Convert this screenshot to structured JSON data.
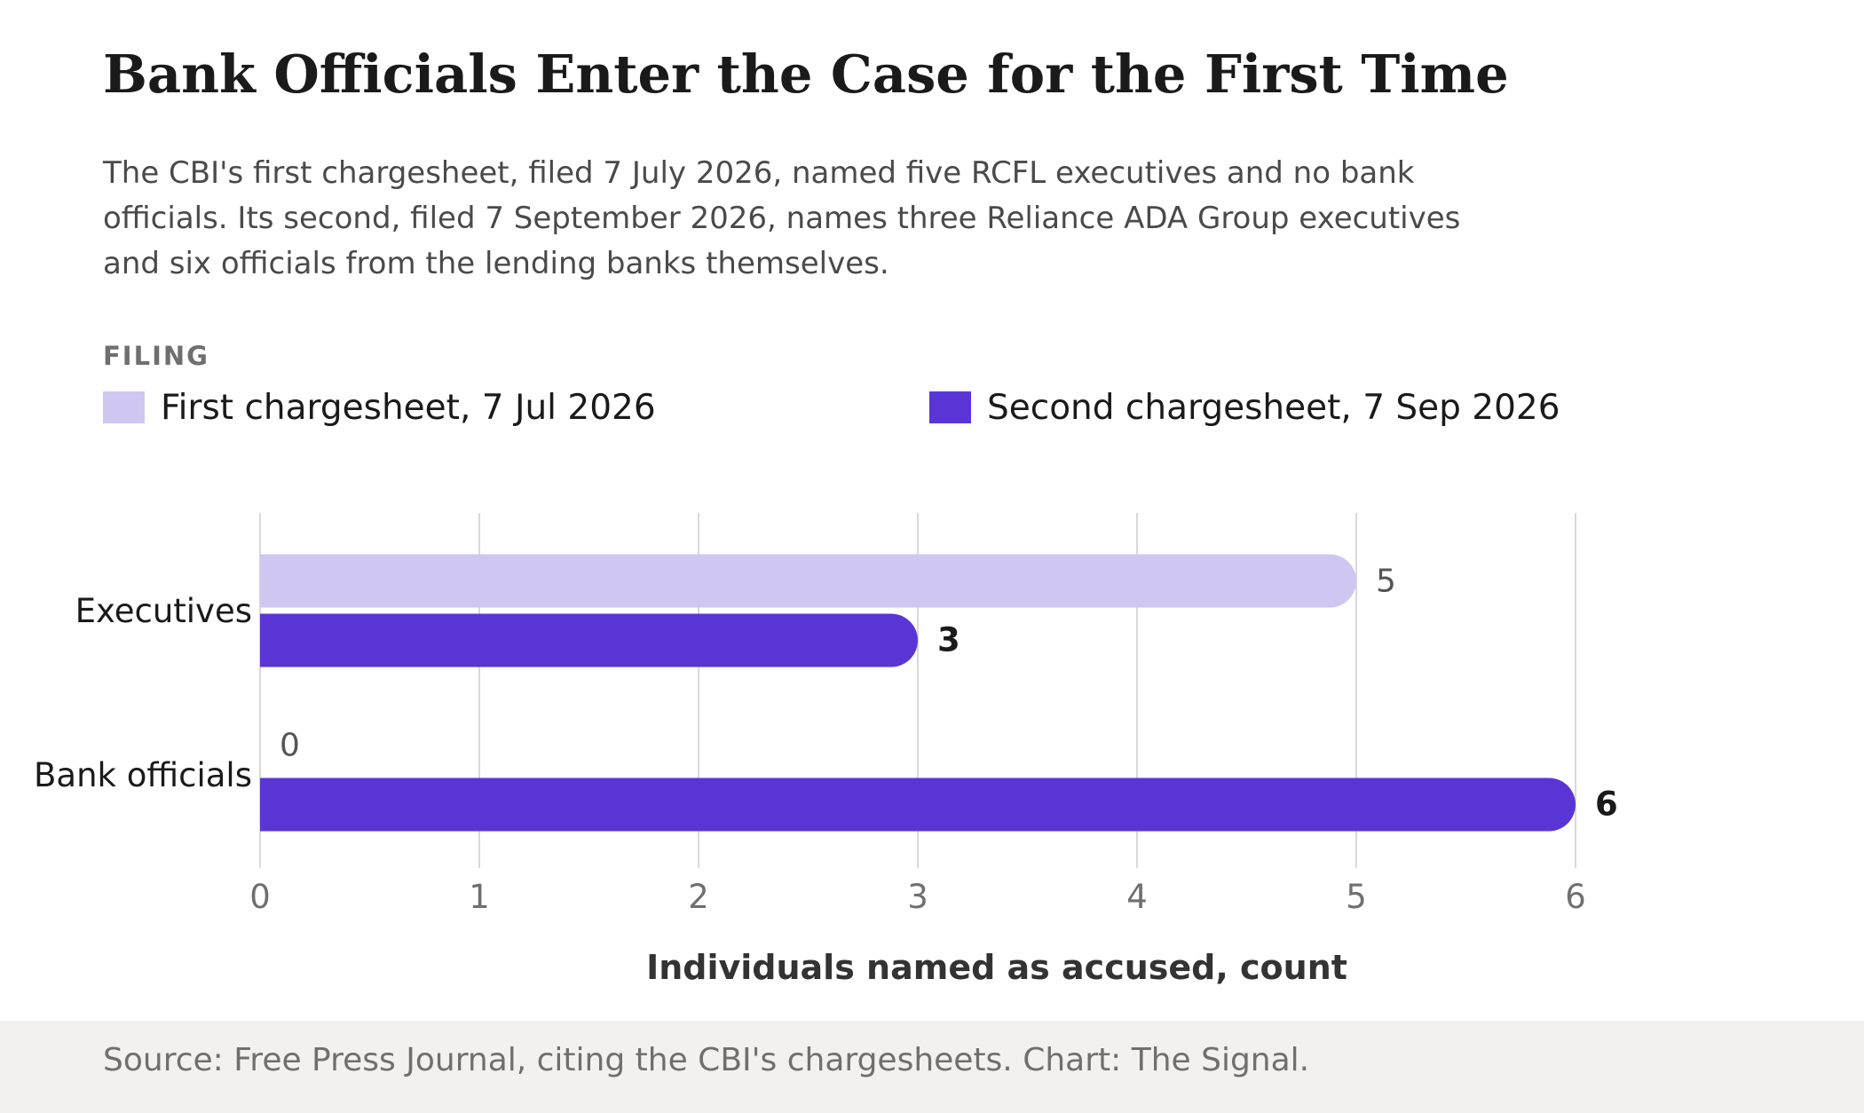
{
  "title": "Bank Officials Enter the Case for the First Time",
  "subtitle": "The CBI's first chargesheet, filed 7 July 2026, named five RCFL executives and no bank officials. Its second, filed 7 September 2026, names three Reliance ADA Group executives and six officials from the lending banks themselves.",
  "legend": {
    "title": "FILING",
    "items": [
      {
        "label": "First chargesheet, 7 Jul 2026",
        "color": "#d0c6f2"
      },
      {
        "label": "Second chargesheet, 7 Sep 2026",
        "color": "#5a35d6"
      }
    ]
  },
  "chart_data": {
    "type": "bar",
    "orientation": "horizontal",
    "categories": [
      "Executives",
      "Bank officials"
    ],
    "series": [
      {
        "name": "First chargesheet, 7 Jul 2026",
        "values": [
          5,
          0
        ],
        "color": "#d0c6f2"
      },
      {
        "name": "Second chargesheet, 7 Sep 2026",
        "values": [
          3,
          6
        ],
        "color": "#5a35d6"
      }
    ],
    "xlabel": "Individuals named as accused, count",
    "xlim": [
      0,
      6
    ],
    "xticks": [
      "0",
      "1",
      "2",
      "3",
      "4",
      "5",
      "6"
    ],
    "grid": true,
    "legend_position": "top"
  },
  "footer": {
    "source": "Source: Free Press Journal, citing the CBI's chargesheets. Chart: The Signal."
  }
}
